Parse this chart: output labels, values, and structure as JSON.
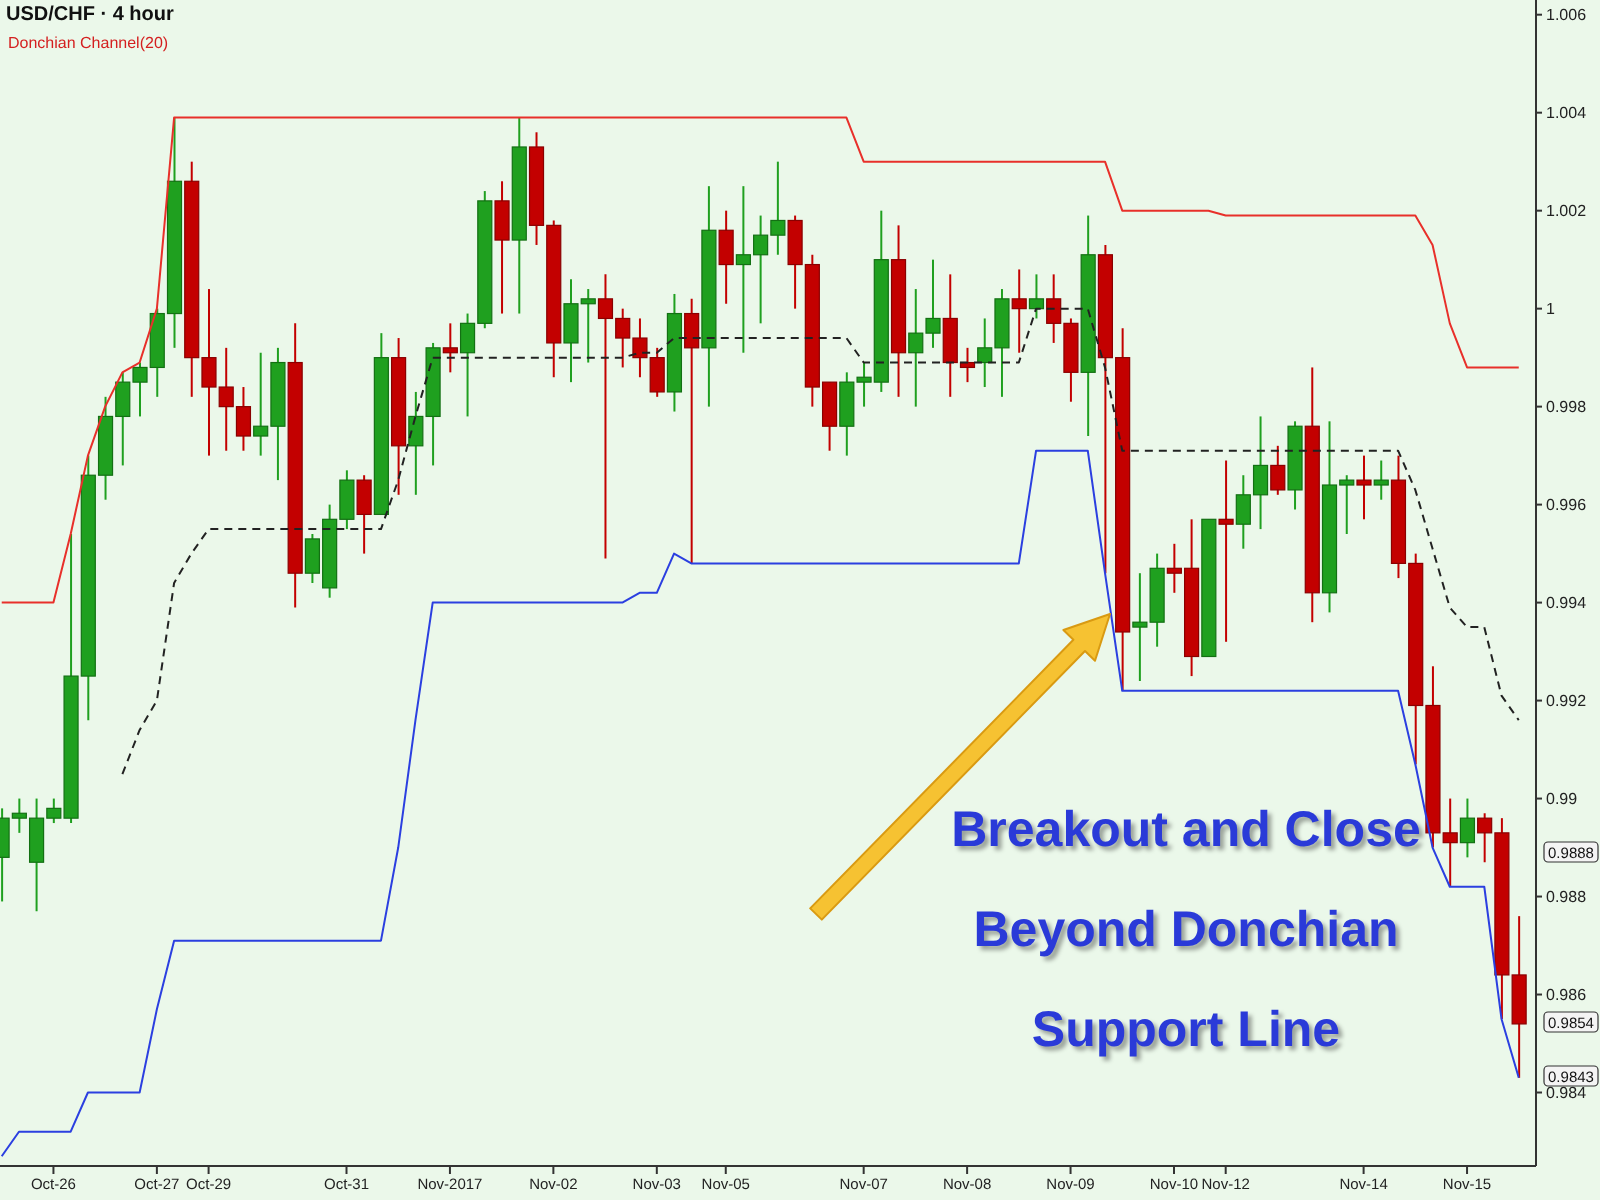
{
  "chart_data": {
    "type": "candlestick",
    "title": "USD/CHF · 4 hour",
    "subtitle": "Donchian Channel(20)",
    "categories": [
      null,
      null,
      null,
      "Oct-26",
      null,
      null,
      null,
      null,
      null,
      "Oct-27",
      null,
      null,
      "Oct-29",
      null,
      null,
      null,
      null,
      null,
      null,
      null,
      "Oct-31",
      null,
      null,
      null,
      null,
      null,
      "Nov-2017",
      null,
      null,
      null,
      null,
      null,
      "Nov-02",
      null,
      null,
      null,
      null,
      null,
      "Nov-03",
      null,
      null,
      null,
      "Nov-05",
      null,
      null,
      null,
      null,
      null,
      null,
      null,
      "Nov-07",
      null,
      null,
      null,
      null,
      null,
      "Nov-08",
      null,
      null,
      null,
      null,
      null,
      "Nov-09",
      null,
      null,
      null,
      null,
      null,
      "Nov-10",
      null,
      null,
      "Nov-12",
      null,
      null,
      null,
      null,
      null,
      null,
      null,
      "Nov-14",
      null,
      null,
      null,
      null,
      null,
      "Nov-15",
      null,
      null,
      null
    ],
    "ohlc": [
      [
        0.9888,
        0.9898,
        0.9879,
        0.9896
      ],
      [
        0.9896,
        0.99,
        0.9893,
        0.9897
      ],
      [
        0.9887,
        0.99,
        0.9877,
        0.9896
      ],
      [
        0.9896,
        0.99,
        0.9895,
        0.9898
      ],
      [
        0.9896,
        0.9954,
        0.9895,
        0.9925
      ],
      [
        0.9925,
        0.997,
        0.9916,
        0.9966
      ],
      [
        0.9966,
        0.9982,
        0.9961,
        0.9978
      ],
      [
        0.9978,
        0.9987,
        0.9968,
        0.9985
      ],
      [
        0.9985,
        0.9989,
        0.9978,
        0.9988
      ],
      [
        0.9988,
        1.0,
        0.9982,
        0.9999
      ],
      [
        0.9999,
        1.0039,
        0.9992,
        1.0026
      ],
      [
        1.0026,
        1.003,
        0.9982,
        0.999
      ],
      [
        0.999,
        1.0004,
        0.997,
        0.9984
      ],
      [
        0.9984,
        0.9992,
        0.9971,
        0.998
      ],
      [
        0.998,
        0.9984,
        0.9971,
        0.9974
      ],
      [
        0.9974,
        0.9991,
        0.997,
        0.9976
      ],
      [
        0.9976,
        0.9992,
        0.9965,
        0.9989
      ],
      [
        0.9989,
        0.9997,
        0.9939,
        0.9946
      ],
      [
        0.9946,
        0.9954,
        0.9944,
        0.9953
      ],
      [
        0.9943,
        0.996,
        0.9941,
        0.9957
      ],
      [
        0.9957,
        0.9967,
        0.9955,
        0.9965
      ],
      [
        0.9965,
        0.9966,
        0.995,
        0.9958
      ],
      [
        0.9958,
        0.9995,
        0.9958,
        0.999
      ],
      [
        0.999,
        0.9994,
        0.9962,
        0.9972
      ],
      [
        0.9972,
        0.9983,
        0.9962,
        0.9978
      ],
      [
        0.9978,
        0.9993,
        0.9968,
        0.9992
      ],
      [
        0.9992,
        0.9997,
        0.9987,
        0.9991
      ],
      [
        0.9991,
        0.9999,
        0.9978,
        0.9997
      ],
      [
        0.9997,
        1.0024,
        0.9996,
        1.0022
      ],
      [
        1.0022,
        1.0026,
        0.9999,
        1.0014
      ],
      [
        1.0014,
        1.0039,
        0.9999,
        1.0033
      ],
      [
        1.0033,
        1.0036,
        1.0013,
        1.0017
      ],
      [
        1.0017,
        1.0018,
        0.9986,
        0.9993
      ],
      [
        0.9993,
        1.0006,
        0.9985,
        1.0001
      ],
      [
        1.0001,
        1.0004,
        0.9989,
        1.0002
      ],
      [
        1.0002,
        1.0007,
        0.9949,
        0.9998
      ],
      [
        0.9998,
        1.0,
        0.9988,
        0.9994
      ],
      [
        0.9994,
        0.9998,
        0.9986,
        0.999
      ],
      [
        0.999,
        0.9992,
        0.9982,
        0.9983
      ],
      [
        0.9983,
        1.0003,
        0.9979,
        0.9999
      ],
      [
        0.9999,
        1.0002,
        0.9948,
        0.9992
      ],
      [
        0.9992,
        1.0025,
        0.998,
        1.0016
      ],
      [
        1.0016,
        1.002,
        1.0001,
        1.0009
      ],
      [
        1.0009,
        1.0025,
        0.9991,
        1.0011
      ],
      [
        1.0011,
        1.0019,
        0.9997,
        1.0015
      ],
      [
        1.0015,
        1.003,
        1.0011,
        1.0018
      ],
      [
        1.0018,
        1.0019,
        1.0,
        1.0009
      ],
      [
        1.0009,
        1.0011,
        0.998,
        0.9984
      ],
      [
        0.9985,
        0.9985,
        0.9971,
        0.9976
      ],
      [
        0.9976,
        0.9987,
        0.997,
        0.9985
      ],
      [
        0.9985,
        0.9989,
        0.998,
        0.9986
      ],
      [
        0.9985,
        1.002,
        0.9983,
        1.001
      ],
      [
        1.001,
        1.0017,
        0.9982,
        0.9991
      ],
      [
        0.9991,
        1.0004,
        0.998,
        0.9995
      ],
      [
        0.9995,
        1.001,
        0.9992,
        0.9998
      ],
      [
        0.9998,
        1.0007,
        0.9982,
        0.9989
      ],
      [
        0.9989,
        0.9992,
        0.9985,
        0.9988
      ],
      [
        0.9989,
        0.9998,
        0.9984,
        0.9992
      ],
      [
        0.9992,
        1.0004,
        0.9982,
        1.0002
      ],
      [
        1.0002,
        1.0008,
        0.9991,
        1.0
      ],
      [
        1.0,
        1.0007,
        0.9998,
        1.0002
      ],
      [
        1.0002,
        1.0007,
        0.9993,
        0.9997
      ],
      [
        0.9997,
        0.9998,
        0.9981,
        0.9987
      ],
      [
        0.9987,
        1.0019,
        0.9974,
        1.0011
      ],
      [
        1.0011,
        1.0013,
        0.9946,
        0.999
      ],
      [
        0.999,
        0.9996,
        0.9922,
        0.9934
      ],
      [
        0.9935,
        0.9946,
        0.9924,
        0.9936
      ],
      [
        0.9936,
        0.995,
        0.9931,
        0.9947
      ],
      [
        0.9947,
        0.9952,
        0.9942,
        0.9946
      ],
      [
        0.9947,
        0.9957,
        0.9925,
        0.9929
      ],
      [
        0.9929,
        0.9957,
        0.9929,
        0.9957
      ],
      [
        0.9957,
        0.9969,
        0.9932,
        0.9956
      ],
      [
        0.9956,
        0.9966,
        0.9951,
        0.9962
      ],
      [
        0.9962,
        0.9978,
        0.9955,
        0.9968
      ],
      [
        0.9968,
        0.9972,
        0.9962,
        0.9963
      ],
      [
        0.9963,
        0.9977,
        0.9959,
        0.9976
      ],
      [
        0.9976,
        0.9988,
        0.9936,
        0.9942
      ],
      [
        0.9942,
        0.9977,
        0.9938,
        0.9964
      ],
      [
        0.9964,
        0.9966,
        0.9954,
        0.9965
      ],
      [
        0.9965,
        0.997,
        0.9957,
        0.9964
      ],
      [
        0.9964,
        0.9969,
        0.9961,
        0.9965
      ],
      [
        0.9965,
        0.997,
        0.9945,
        0.9948
      ],
      [
        0.9948,
        0.995,
        0.9907,
        0.9919
      ],
      [
        0.9919,
        0.9927,
        0.989,
        0.9893
      ],
      [
        0.9893,
        0.99,
        0.9882,
        0.9891
      ],
      [
        0.9891,
        0.99,
        0.9888,
        0.9896
      ],
      [
        0.9896,
        0.9897,
        0.9887,
        0.9893
      ],
      [
        0.9893,
        0.9896,
        0.9855,
        0.9864
      ],
      [
        0.9864,
        0.9876,
        0.9843,
        0.9854
      ]
    ],
    "series": [
      {
        "type": "line",
        "color": "#e8302a",
        "values": [
          0.994,
          0.994,
          0.994,
          0.994,
          0.9954,
          0.997,
          0.998,
          0.9987,
          0.9989,
          1.0,
          1.0039,
          1.0039,
          1.0039,
          1.0039,
          1.0039,
          1.0039,
          1.0039,
          1.0039,
          1.0039,
          1.0039,
          1.0039,
          1.0039,
          1.0039,
          1.0039,
          1.0039,
          1.0039,
          1.0039,
          1.0039,
          1.0039,
          1.0039,
          1.0039,
          1.0039,
          1.0039,
          1.0039,
          1.0039,
          1.0039,
          1.0039,
          1.0039,
          1.0039,
          1.0039,
          1.0039,
          1.0039,
          1.0039,
          1.0039,
          1.0039,
          1.0039,
          1.0039,
          1.0039,
          1.0039,
          1.0039,
          1.003,
          1.003,
          1.003,
          1.003,
          1.003,
          1.003,
          1.003,
          1.003,
          1.003,
          1.003,
          1.003,
          1.003,
          1.003,
          1.003,
          1.003,
          1.002,
          1.002,
          1.002,
          1.002,
          1.002,
          1.002,
          1.0019,
          1.0019,
          1.0019,
          1.0019,
          1.0019,
          1.0019,
          1.0019,
          1.0019,
          1.0019,
          1.0019,
          1.0019,
          1.0019,
          1.0013,
          0.9997,
          0.9988,
          0.9988,
          0.9988,
          0.9988
        ]
      },
      {
        "type": "line",
        "color": "#2b3fe0",
        "values": [
          0.9827,
          0.9832,
          0.9832,
          0.9832,
          0.9832,
          0.984,
          0.984,
          0.984,
          0.984,
          0.9857,
          0.9871,
          0.9871,
          0.9871,
          0.9871,
          0.9871,
          0.9871,
          0.9871,
          0.9871,
          0.9871,
          0.9871,
          0.9871,
          0.9871,
          0.9871,
          0.989,
          0.9916,
          0.994,
          0.994,
          0.994,
          0.994,
          0.994,
          0.994,
          0.994,
          0.994,
          0.994,
          0.994,
          0.994,
          0.994,
          0.9942,
          0.9942,
          0.995,
          0.9948,
          0.9948,
          0.9948,
          0.9948,
          0.9948,
          0.9948,
          0.9948,
          0.9948,
          0.9948,
          0.9948,
          0.9948,
          0.9948,
          0.9948,
          0.9948,
          0.9948,
          0.9948,
          0.9948,
          0.9948,
          0.9948,
          0.9948,
          0.9971,
          0.9971,
          0.9971,
          0.9971,
          0.9946,
          0.9922,
          0.9922,
          0.9922,
          0.9922,
          0.9922,
          0.9922,
          0.9922,
          0.9922,
          0.9922,
          0.9922,
          0.9922,
          0.9922,
          0.9922,
          0.9922,
          0.9922,
          0.9922,
          0.9922,
          0.9907,
          0.989,
          0.9882,
          0.9882,
          0.9882,
          0.9855,
          0.9843
        ]
      },
      {
        "type": "line",
        "color": "#222222",
        "line_style": "dashed",
        "values": [
          null,
          null,
          null,
          null,
          null,
          null,
          null,
          0.9905,
          0.9914,
          0.992,
          0.9944,
          0.995,
          0.9955,
          0.9955,
          0.9955,
          0.9955,
          0.9955,
          0.9955,
          0.9955,
          0.9955,
          0.9955,
          0.9955,
          0.9955,
          0.9965,
          0.9978,
          0.999,
          0.999,
          0.999,
          0.999,
          0.999,
          0.999,
          0.999,
          0.999,
          0.999,
          0.999,
          0.999,
          0.999,
          0.9991,
          0.9991,
          0.9994,
          0.9994,
          0.9994,
          0.9994,
          0.9994,
          0.9994,
          0.9994,
          0.9994,
          0.9994,
          0.9994,
          0.9994,
          0.9989,
          0.9989,
          0.9989,
          0.9989,
          0.9989,
          0.9989,
          0.9989,
          0.9989,
          0.9989,
          0.9989,
          1.0,
          1.0,
          1.0,
          1.0,
          0.9988,
          0.9971,
          0.9971,
          0.9971,
          0.9971,
          0.9971,
          0.9971,
          0.9971,
          0.9971,
          0.9971,
          0.9971,
          0.9971,
          0.9971,
          0.9971,
          0.9971,
          0.9971,
          0.9971,
          0.9971,
          0.9963,
          0.9951,
          0.9939,
          0.9935,
          0.9935,
          0.9921,
          0.9916
        ]
      }
    ],
    "ylim": [
      0.9825,
      1.0063
    ],
    "yticks": [
      0.984,
      0.986,
      0.988,
      0.99,
      0.992,
      0.994,
      0.996,
      0.998,
      1,
      1.002,
      1.004,
      1.006
    ],
    "annotations": [
      "0.9888",
      "0.9854",
      "0.9843",
      "Breakout and Close Beyond Donchian Support Line"
    ]
  }
}
